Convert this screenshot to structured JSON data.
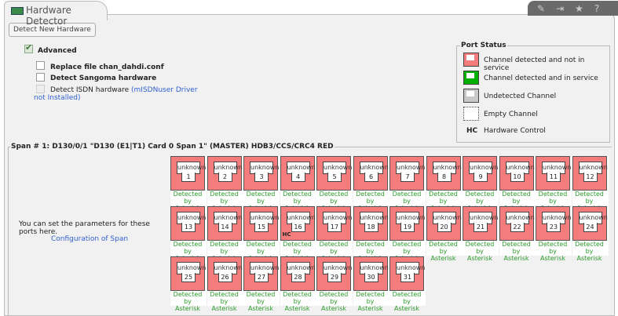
{
  "title": "Hardware Detector",
  "toolbar": {
    "icons": [
      "edit-icon",
      "export-icon",
      "star-icon",
      "help-icon"
    ],
    "glyphs": [
      "✎",
      "⇥",
      "★",
      "?"
    ]
  },
  "detect_button": "Detect New Hardware",
  "advanced": {
    "label": "Advanced",
    "checked": true
  },
  "options": [
    {
      "label": "Replace file chan_dahdi.conf",
      "checked": false
    },
    {
      "label": "Detect Sangoma hardware",
      "checked": false
    },
    {
      "label": "Detect ISDN hardware",
      "note": "(mISDNuser Driver not Installed)",
      "disabled": true
    }
  ],
  "port_status": {
    "title": "Port Status",
    "items": [
      {
        "label": "Channel detected and not in service",
        "color": "#f47c7c"
      },
      {
        "label": "Channel detected and in service",
        "color": "#00b000"
      },
      {
        "label": "Undetected Channel",
        "color": "#c8c8c8"
      },
      {
        "label": "Empty Channel",
        "color": "#ffffff"
      }
    ],
    "hc": {
      "abbr": "HC",
      "label": "Hardware Control"
    }
  },
  "span": {
    "title": "Span # 1: D130/0/1 \"D130 (E1|T1) Card 0 Span 1\" (MASTER) HDB3/CCS/CRC4 RED",
    "info": "You can set the parameters for these ports here.",
    "config_link": "Configuration of Span",
    "port_label": "unknown",
    "status_line1": "Detected by",
    "status_line2": "Asterisk",
    "port_color": "#f47c7c",
    "hc_port": 16,
    "hc_label": "HC",
    "port_count": 31
  }
}
